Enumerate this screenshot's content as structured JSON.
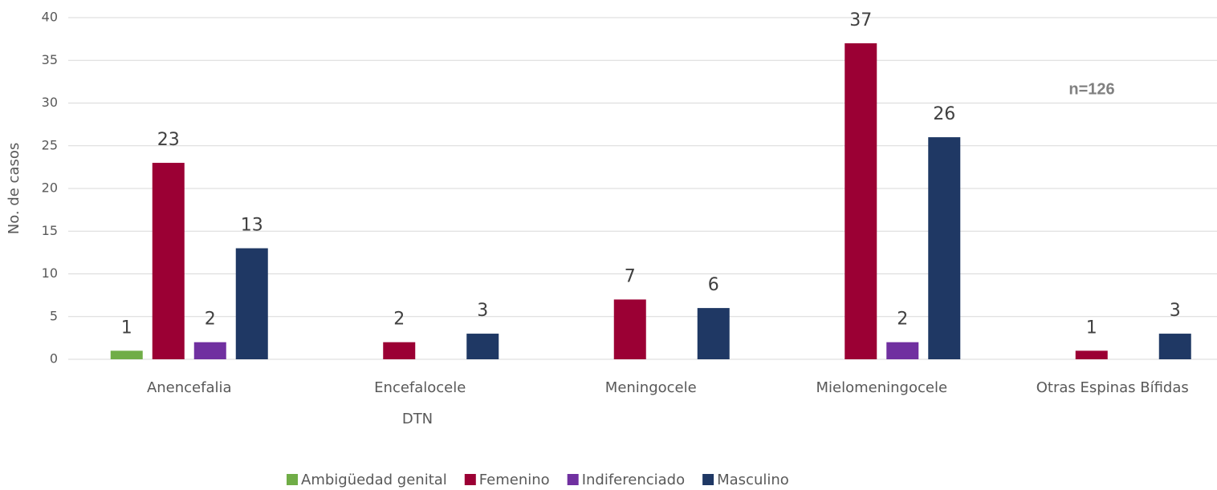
{
  "chart_data": {
    "type": "bar",
    "categories": [
      "Anencefalia",
      "Encefalocele",
      "Meningocele",
      "Mielomeningocele",
      "Otras Espinas Bífidas"
    ],
    "series": [
      {
        "name": "Ambigüedad genital",
        "color": "#70ad47",
        "values": [
          1,
          null,
          null,
          null,
          null
        ]
      },
      {
        "name": "Femenino",
        "color": "#9b0034",
        "values": [
          23,
          2,
          7,
          37,
          1
        ]
      },
      {
        "name": "Indiferenciado",
        "color": "#7030a0",
        "values": [
          2,
          null,
          null,
          2,
          null
        ]
      },
      {
        "name": "Masculino",
        "color": "#1f3864",
        "values": [
          13,
          3,
          6,
          26,
          3
        ]
      }
    ],
    "xlabel": "DTN",
    "ylabel": "No. de casos",
    "annotation": "n=126",
    "ylim": [
      0,
      40
    ],
    "yticks": [
      0,
      5,
      10,
      15,
      20,
      25,
      30,
      35,
      40
    ],
    "grid": true,
    "legend": "bottom"
  }
}
